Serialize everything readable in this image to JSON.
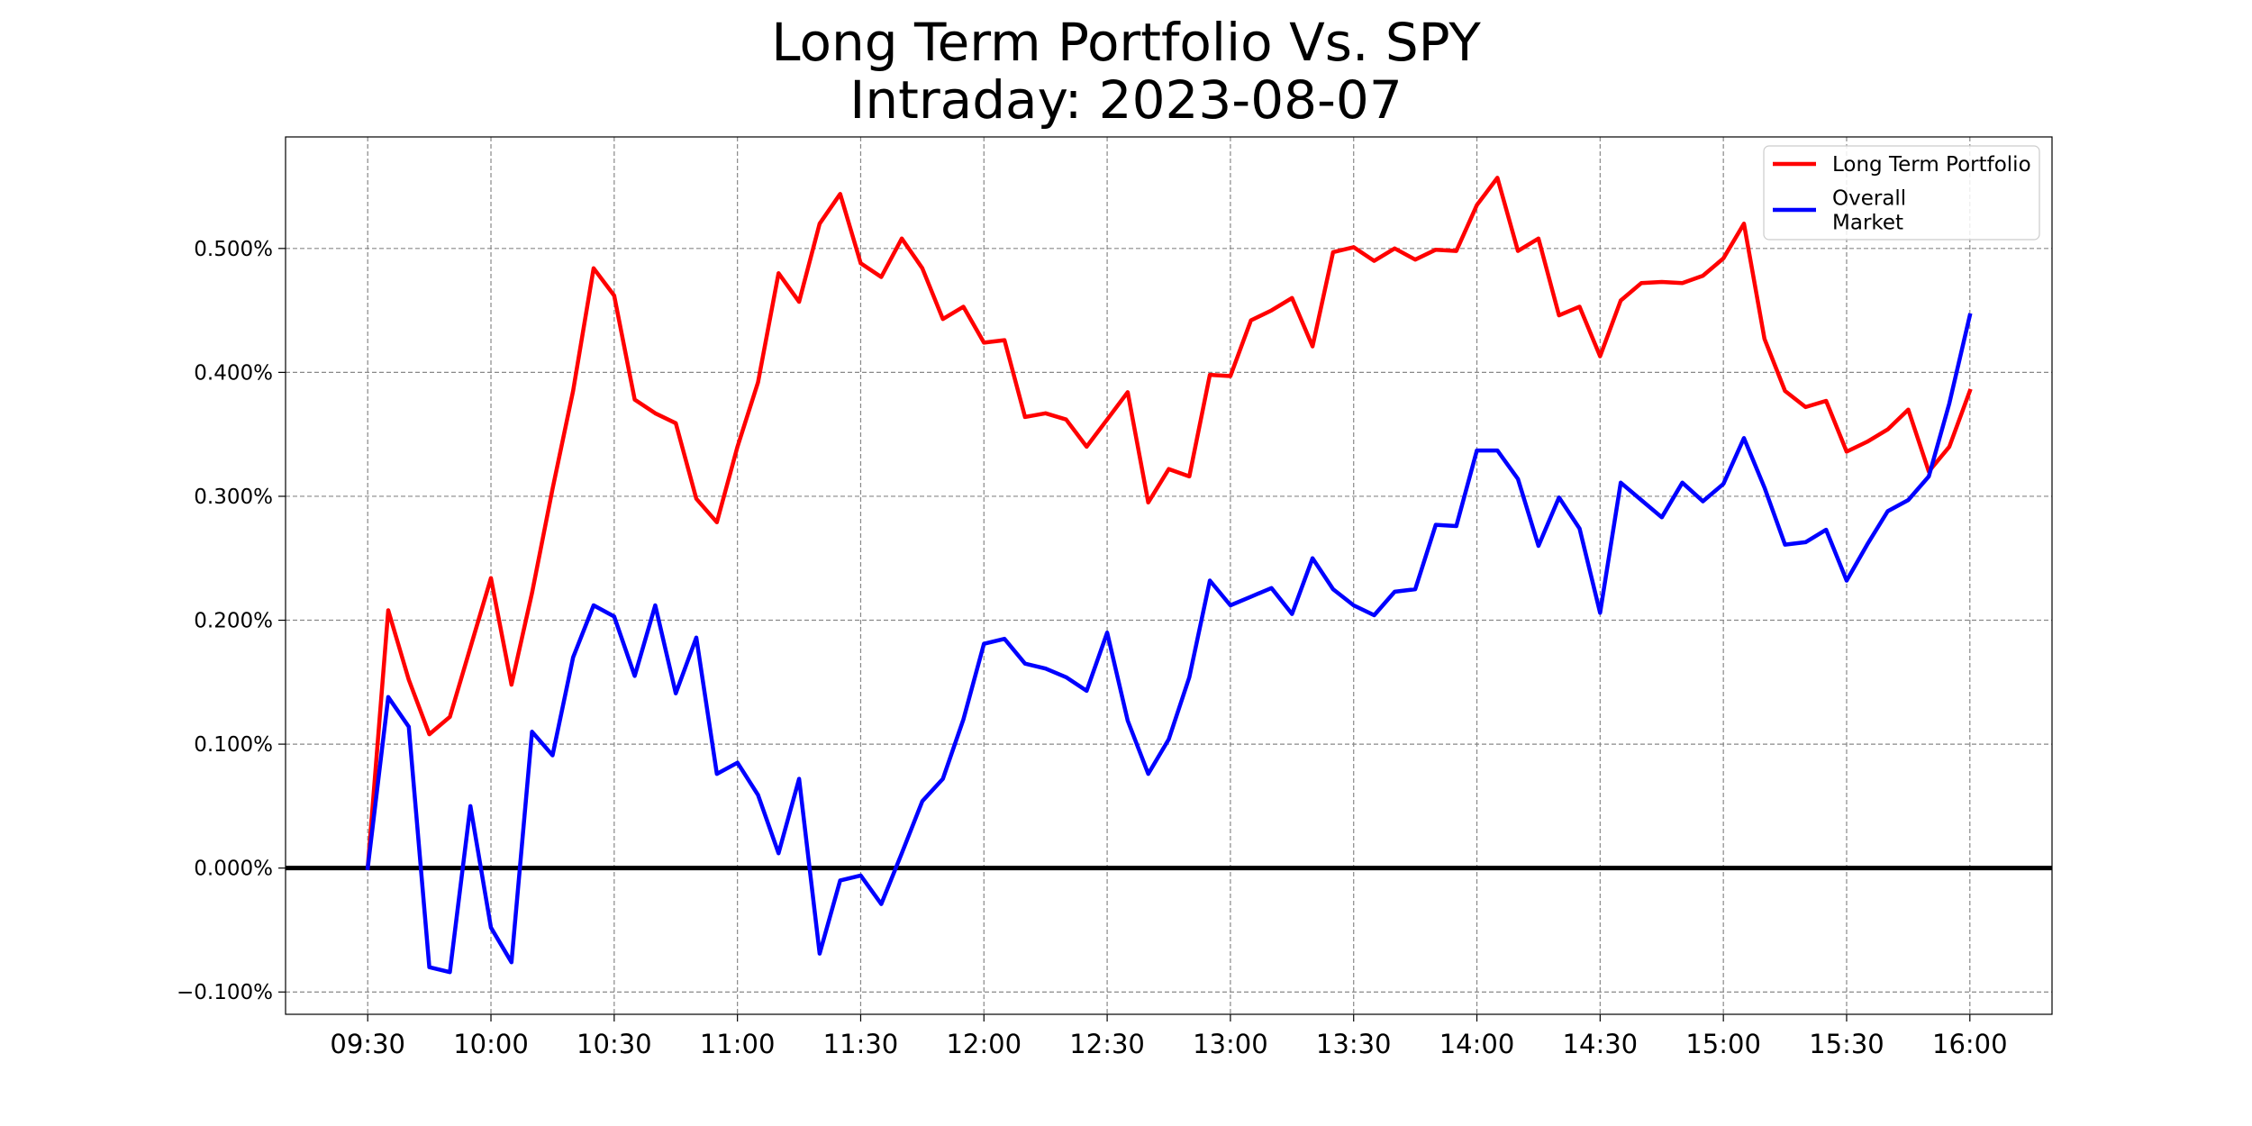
{
  "chart_data": {
    "type": "line",
    "title": [
      "Long Term Portfolio Vs. SPY",
      "Intraday: 2023-08-07"
    ],
    "xlabel": "",
    "ylabel": "",
    "x_ticks": [
      "09:30",
      "10:00",
      "10:30",
      "11:00",
      "11:30",
      "12:00",
      "12:30",
      "13:00",
      "13:30",
      "14:00",
      "14:30",
      "15:00",
      "15:30",
      "16:00"
    ],
    "y_ticks": [
      "−0.100%",
      "0.000%",
      "0.100%",
      "0.200%",
      "0.300%",
      "0.400%",
      "0.500%"
    ],
    "ylim": [
      -0.118,
      0.59
    ],
    "xlim": [
      "09:10",
      "16:20"
    ],
    "grid": true,
    "legend_position": "top-right",
    "zero_line": 0,
    "x": [
      "09:30",
      "09:35",
      "09:40",
      "09:45",
      "09:50",
      "09:55",
      "10:00",
      "10:05",
      "10:10",
      "10:15",
      "10:20",
      "10:25",
      "10:30",
      "10:35",
      "10:40",
      "10:45",
      "10:50",
      "10:55",
      "11:00",
      "11:05",
      "11:10",
      "11:15",
      "11:20",
      "11:25",
      "11:30",
      "11:35",
      "11:40",
      "11:45",
      "11:50",
      "11:55",
      "12:00",
      "12:05",
      "12:10",
      "12:15",
      "12:20",
      "12:25",
      "12:30",
      "12:35",
      "12:40",
      "12:45",
      "12:50",
      "12:55",
      "13:00",
      "13:05",
      "13:10",
      "13:15",
      "13:20",
      "13:25",
      "13:30",
      "13:35",
      "13:40",
      "13:45",
      "13:50",
      "13:55",
      "14:00",
      "14:05",
      "14:10",
      "14:15",
      "14:20",
      "14:25",
      "14:30",
      "14:35",
      "14:40",
      "14:45",
      "14:50",
      "14:55",
      "15:00",
      "15:05",
      "15:10",
      "15:15",
      "15:20",
      "15:25",
      "15:30",
      "15:35",
      "15:40",
      "15:45",
      "15:50",
      "15:55",
      "16:00"
    ],
    "series": [
      {
        "name": "Long Term Portfolio",
        "color": "#ff0000",
        "values": [
          0.0,
          0.208,
          0.152,
          0.108,
          0.122,
          0.178,
          0.234,
          0.148,
          0.222,
          0.306,
          0.385,
          0.484,
          0.462,
          0.378,
          0.367,
          0.359,
          0.298,
          0.279,
          0.34,
          0.392,
          0.48,
          0.457,
          0.52,
          0.544,
          0.488,
          0.477,
          0.508,
          0.484,
          0.443,
          0.453,
          0.424,
          0.426,
          0.364,
          0.367,
          0.362,
          0.34,
          0.362,
          0.384,
          0.295,
          0.322,
          0.316,
          0.398,
          0.397,
          0.442,
          0.45,
          0.46,
          0.421,
          0.497,
          0.501,
          0.49,
          0.5,
          0.491,
          0.499,
          0.498,
          0.535,
          0.557,
          0.498,
          0.508,
          0.446,
          0.453,
          0.413,
          0.458,
          0.472,
          0.473,
          0.472,
          0.478,
          0.492,
          0.52,
          0.427,
          0.385,
          0.372,
          0.377,
          0.336,
          0.344,
          0.354,
          0.37,
          0.32,
          0.34,
          0.385
        ]
      },
      {
        "name": "Overall Market",
        "color": "#0000ff",
        "values": [
          0.0,
          0.138,
          0.114,
          -0.08,
          -0.084,
          0.05,
          -0.048,
          -0.076,
          0.11,
          0.091,
          0.17,
          0.212,
          0.203,
          0.155,
          0.212,
          0.141,
          0.186,
          0.076,
          0.085,
          0.059,
          0.012,
          0.072,
          -0.069,
          -0.01,
          -0.006,
          -0.029,
          0.012,
          0.054,
          0.072,
          0.12,
          0.181,
          0.185,
          0.165,
          0.161,
          0.154,
          0.143,
          0.19,
          0.119,
          0.076,
          0.104,
          0.154,
          0.232,
          0.212,
          0.219,
          0.226,
          0.205,
          0.25,
          0.225,
          0.212,
          0.204,
          0.223,
          0.225,
          0.277,
          0.276,
          0.337,
          0.337,
          0.314,
          0.26,
          0.299,
          0.274,
          0.206,
          0.311,
          0.297,
          0.283,
          0.311,
          0.296,
          0.31,
          0.347,
          0.307,
          0.261,
          0.263,
          0.273,
          0.232,
          0.261,
          0.288,
          0.297,
          0.316,
          0.375,
          0.446
        ]
      }
    ],
    "legend": [
      "Long Term Portfolio",
      "Overall\nMarket"
    ]
  }
}
